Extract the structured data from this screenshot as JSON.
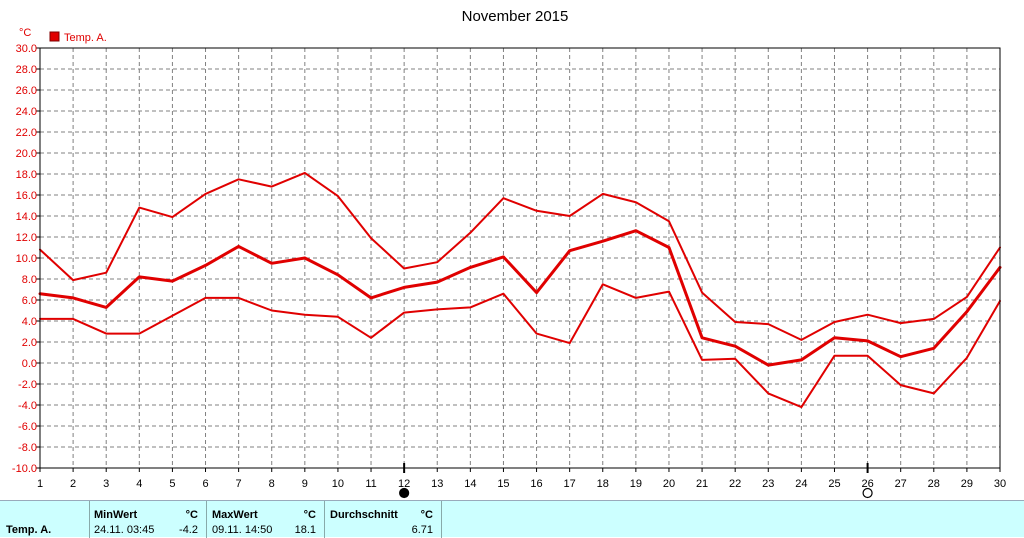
{
  "chart_data": {
    "type": "line",
    "title": "November 2015",
    "unit_label": "°C",
    "x": [
      1,
      2,
      3,
      4,
      5,
      6,
      7,
      8,
      9,
      10,
      11,
      12,
      13,
      14,
      15,
      16,
      17,
      18,
      19,
      20,
      21,
      22,
      23,
      24,
      25,
      26,
      27,
      28,
      29,
      30
    ],
    "xlim": [
      1,
      30
    ],
    "ylim": [
      -10,
      30
    ],
    "yticks": [
      "30.0",
      "28.0",
      "26.0",
      "24.0",
      "22.0",
      "20.0",
      "18.0",
      "16.0",
      "14.0",
      "12.0",
      "10.0",
      "8.0",
      "6.0",
      "4.0",
      "2.0",
      "0.0",
      "-2.0",
      "-4.0",
      "-6.0",
      "-8.0",
      "-10.0"
    ],
    "grid": true,
    "legend": {
      "position": "top-left",
      "entries": [
        "Temp. A."
      ]
    },
    "color": "#e00000",
    "series": [
      {
        "name": "Temp. A.",
        "role": "max",
        "values": [
          10.8,
          7.9,
          8.6,
          14.8,
          13.9,
          16.1,
          17.5,
          16.8,
          18.1,
          15.9,
          11.9,
          9.0,
          9.6,
          12.4,
          15.7,
          14.5,
          14.0,
          16.1,
          15.3,
          13.5,
          6.7,
          3.9,
          3.7,
          2.2,
          3.9,
          4.6,
          3.8,
          4.2,
          6.3,
          11.0
        ]
      },
      {
        "name": "Temp. A.",
        "role": "average",
        "values": [
          6.6,
          6.2,
          5.3,
          8.2,
          7.8,
          9.3,
          11.1,
          9.5,
          10.0,
          8.4,
          6.2,
          7.2,
          7.7,
          9.1,
          10.1,
          6.7,
          10.7,
          11.6,
          12.6,
          11.0,
          2.4,
          1.6,
          -0.2,
          0.3,
          2.4,
          2.1,
          0.6,
          1.4,
          4.9,
          9.1
        ]
      },
      {
        "name": "Temp. A.",
        "role": "min",
        "values": [
          4.2,
          4.2,
          2.8,
          2.8,
          4.5,
          6.2,
          6.2,
          5.0,
          4.6,
          4.4,
          2.4,
          4.8,
          5.1,
          5.3,
          6.6,
          2.8,
          1.9,
          7.5,
          6.2,
          6.8,
          0.3,
          0.4,
          -2.9,
          -4.2,
          0.7,
          0.7,
          -2.1,
          -2.9,
          0.5,
          5.9
        ]
      }
    ],
    "moon_markers": [
      {
        "x": 12,
        "symbol": "new-moon"
      },
      {
        "x": 26,
        "symbol": "full-moon"
      }
    ]
  },
  "stats": {
    "row_label": "Temp. A.",
    "min": {
      "header": "MinWert",
      "unit": "°C",
      "time": "24.11.  03:45",
      "value": "-4.2"
    },
    "max": {
      "header": "MaxWert",
      "unit": "°C",
      "time": "09.11.  14:50",
      "value": "18.1"
    },
    "avg": {
      "header": "Durchschnitt",
      "unit": "°C",
      "value": "6.71"
    }
  }
}
